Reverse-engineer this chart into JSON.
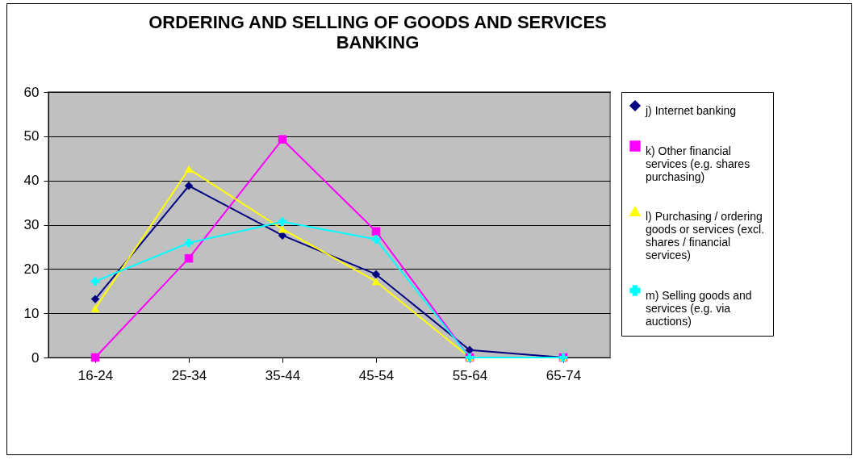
{
  "chart_data": {
    "type": "line",
    "title": "ORDERING AND SELLING OF GOODS AND SERVICES",
    "subtitle": "BANKING",
    "categories": [
      "16-24",
      "25-34",
      "35-44",
      "45-54",
      "55-64",
      "65-74"
    ],
    "series": [
      {
        "name": "j) Internet banking",
        "color": "#000080",
        "marker": "diamond",
        "values": [
          13.2,
          38.8,
          27.6,
          18.8,
          1.7,
          0
        ]
      },
      {
        "name": "k) Other financial services (e.g. shares purchasing)",
        "color": "#ff00ff",
        "marker": "square",
        "values": [
          0,
          22.4,
          49.3,
          28.5,
          0,
          0
        ]
      },
      {
        "name": "l) Purchasing / ordering goods or services (excl. shares / financial services)",
        "color": "#ffff00",
        "marker": "triangle",
        "values": [
          11.1,
          42.6,
          29,
          17.2,
          0,
          0
        ]
      },
      {
        "name": "m) Selling goods and services (e.g. via auctions)",
        "color": "#00ffff",
        "marker": "cross",
        "values": [
          17.2,
          25.9,
          30.7,
          26.7,
          0,
          0
        ]
      }
    ],
    "ylim": [
      0,
      60
    ],
    "yticks": [
      0,
      10,
      20,
      30,
      40,
      50,
      60
    ],
    "grid": "y",
    "legend": "right"
  }
}
